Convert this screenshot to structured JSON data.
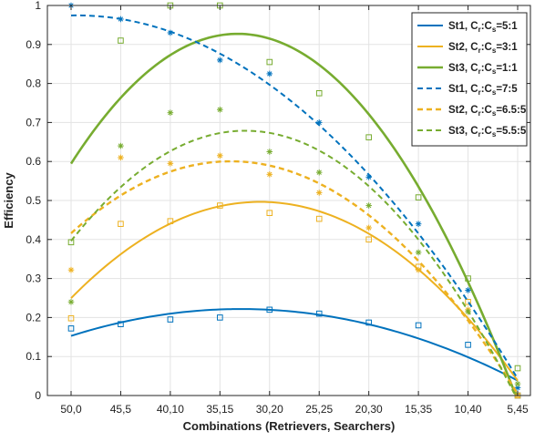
{
  "chart_data": {
    "type": "line",
    "title": "",
    "xlabel": "Combinations (Retrievers, Searchers)",
    "ylabel": "Efficiency",
    "categories": [
      "50,0",
      "45,5",
      "40,10",
      "35,15",
      "30,20",
      "25,25",
      "20,30",
      "15,35",
      "10,40",
      "5,45"
    ],
    "ylim": [
      0,
      1
    ],
    "yticks": [
      "0",
      "0.1",
      "0.2",
      "0.3",
      "0.4",
      "0.5",
      "0.6",
      "0.7",
      "0.8",
      "0.9",
      "1"
    ],
    "grid": true,
    "legend_position": "top-right",
    "series": [
      {
        "name": "St1, Cr:Cs=5:1",
        "legend": {
          "pre": "St1, C",
          "s1": "r",
          "mid": ":C",
          "s2": "s",
          "post": "=5:1"
        },
        "color": "#0072BD",
        "style": "solid",
        "width": 2,
        "marker": "square",
        "points": [
          0.172,
          0.183,
          0.195,
          0.2,
          0.22,
          0.21,
          0.187,
          0.18,
          0.13,
          0.0
        ],
        "fit": [
          0.153,
          0.185,
          0.211,
          0.222,
          0.222,
          0.208,
          0.18,
          0.143,
          0.099,
          0.04
        ]
      },
      {
        "name": "St2, Cr:Cs=3:1",
        "legend": {
          "pre": "St2, C",
          "s1": "r",
          "mid": ":C",
          "s2": "s",
          "post": "=3:1"
        },
        "color": "#EDB120",
        "style": "solid",
        "width": 2,
        "marker": "square",
        "points": [
          0.198,
          0.44,
          0.447,
          0.487,
          0.468,
          0.453,
          0.4,
          0.33,
          0.24,
          0.0
        ],
        "fit": [
          0.25,
          0.365,
          0.44,
          0.483,
          0.492,
          0.47,
          0.415,
          0.33,
          0.205,
          0.03
        ]
      },
      {
        "name": "St3, Cr:Cs=1:1",
        "legend": {
          "pre": "St3, C",
          "s1": "r",
          "mid": ":C",
          "s2": "s",
          "post": "=1:1"
        },
        "color": "#77AC30",
        "style": "solid",
        "width": 2.6,
        "marker": "square",
        "points": [
          0.393,
          0.91,
          1.0,
          1.0,
          0.855,
          0.775,
          0.662,
          0.508,
          0.3,
          0.07
        ],
        "fit": [
          0.585,
          0.775,
          0.875,
          0.92,
          0.912,
          0.855,
          0.73,
          0.52,
          0.28,
          0.0
        ]
      },
      {
        "name": "St1, Cr:Cs=7:5",
        "legend": {
          "pre": "St1, C",
          "s1": "r",
          "mid": ":C",
          "s2": "s",
          "post": "=7:5"
        },
        "color": "#0072BD",
        "style": "dashed",
        "width": 2,
        "marker": "asterisk",
        "points": [
          1.0,
          0.965,
          0.93,
          0.86,
          0.825,
          0.7,
          0.56,
          0.44,
          0.27,
          0.02
        ],
        "fit": [
          0.98,
          0.965,
          0.925,
          0.87,
          0.8,
          0.698,
          0.567,
          0.42,
          0.24,
          0.04
        ]
      },
      {
        "name": "St2, Cr:Cs=6.5:5",
        "legend": {
          "pre": "St2, C",
          "s1": "r",
          "mid": ":C",
          "s2": "s",
          "post": "=6.5:5"
        },
        "color": "#EDB120",
        "style": "dashed",
        "width": 2.4,
        "marker": "asterisk",
        "points": [
          0.322,
          0.61,
          0.595,
          0.615,
          0.567,
          0.52,
          0.43,
          0.322,
          0.22,
          0.0
        ],
        "fit": [
          0.41,
          0.52,
          0.578,
          0.598,
          0.588,
          0.54,
          0.46,
          0.345,
          0.2,
          0.0
        ]
      },
      {
        "name": "St3, Cr:Cs=5.5:5",
        "legend": {
          "pre": "St3, C",
          "s1": "r",
          "mid": ":C",
          "s2": "s",
          "post": "=5.5:5"
        },
        "color": "#77AC30",
        "style": "dashed",
        "width": 2,
        "marker": "asterisk",
        "points": [
          0.24,
          0.64,
          0.725,
          0.733,
          0.625,
          0.572,
          0.487,
          0.367,
          0.215,
          0.03
        ],
        "fit": [
          0.385,
          0.542,
          0.633,
          0.677,
          0.675,
          0.628,
          0.533,
          0.39,
          0.21,
          0.0
        ]
      }
    ]
  }
}
